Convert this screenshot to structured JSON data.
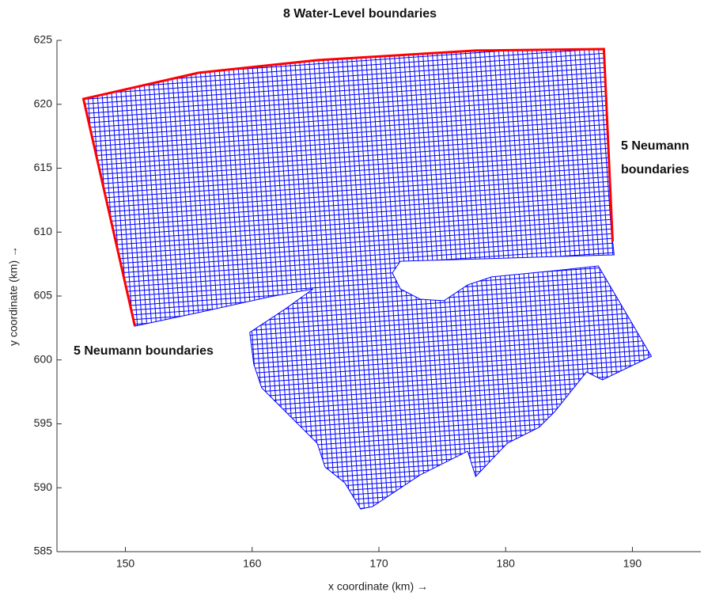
{
  "chart_data": {
    "type": "mesh",
    "title": "8 Water-Level boundaries",
    "x_label": "x coordinate (km) →",
    "y_label": "y coordinate (km) →",
    "xlim": [
      144.6,
      195.4
    ],
    "ylim": [
      585,
      625
    ],
    "xticks": [
      150,
      160,
      170,
      180,
      190
    ],
    "yticks": [
      585,
      590,
      595,
      600,
      605,
      610,
      615,
      620,
      625
    ],
    "annotations": [
      {
        "lines": [
          "5 Neumann",
          "boundaries"
        ]
      },
      {
        "lines": [
          "5 Neumann boundaries"
        ]
      }
    ],
    "mesh": {
      "color": "#0000ff",
      "x": [
        146.69,
        155.75,
        165.13,
        177.63,
        187.75,
        188.44,
        188.56,
        171.69,
        171.06,
        171.69,
        173.25,
        175.13,
        177.0,
        178.88,
        183.88,
        187.31,
        191.5,
        187.63,
        186.38,
        183.88,
        182.63,
        180.13,
        177.63,
        177.0,
        173.25,
        169.5,
        168.56,
        167.31,
        165.75,
        165.13,
        162.0,
        160.75,
        160.13,
        159.81,
        162.63,
        164.81,
        161.38,
        155.75,
        150.75
      ],
      "y": [
        620.42,
        622.46,
        623.45,
        624.2,
        624.32,
        609.27,
        608.22,
        607.72,
        606.8,
        605.56,
        604.75,
        604.63,
        605.87,
        606.49,
        606.98,
        607.35,
        600.29,
        598.44,
        599.06,
        595.96,
        594.72,
        593.48,
        590.88,
        592.86,
        591.0,
        588.53,
        588.34,
        590.39,
        591.63,
        593.48,
        596.58,
        597.82,
        599.67,
        602.15,
        604.0,
        605.56,
        604.94,
        603.7,
        602.65
      ]
    },
    "boundary": {
      "color": "#ff0000",
      "x": [
        150.75,
        146.69,
        155.75,
        165.13,
        177.63,
        187.75,
        188.44
      ],
      "y": [
        602.65,
        620.42,
        622.46,
        623.45,
        624.2,
        624.32,
        609.27
      ]
    }
  }
}
